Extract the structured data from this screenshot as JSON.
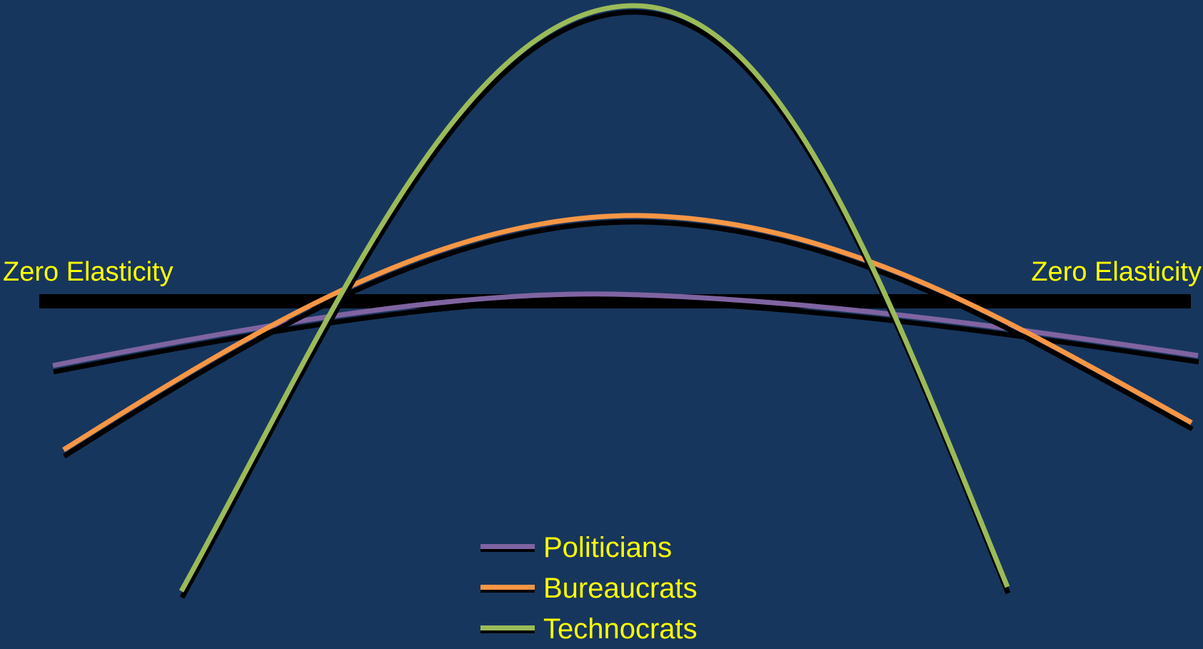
{
  "colors": {
    "background": "#17365d",
    "text": "#ffff00",
    "baseline": "#000000",
    "shadow": "#000000"
  },
  "labels": {
    "zero_left": "Zero Elasticity",
    "zero_right": "Zero Elasticity"
  },
  "legend": [
    {
      "name": "Politicians",
      "color": "#8064a2"
    },
    {
      "name": "Bureaucrats",
      "color": "#f79646"
    },
    {
      "name": "Technocrats",
      "color": "#9bbb59"
    }
  ]
}
